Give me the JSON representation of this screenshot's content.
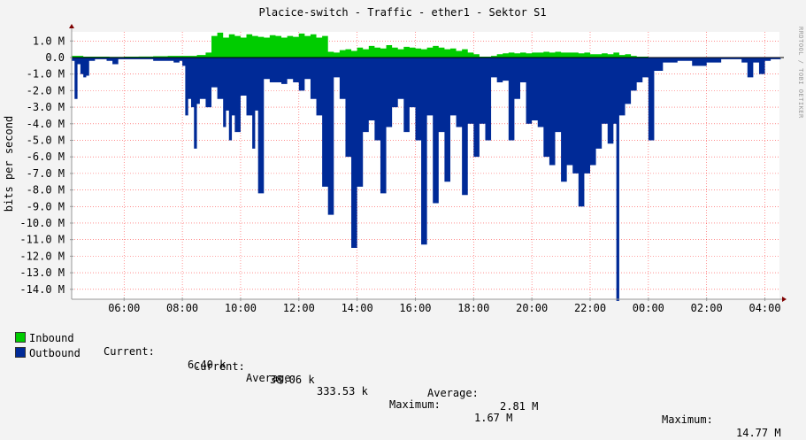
{
  "chart_data": {
    "type": "area",
    "title": "Placice-switch - Traffic - ether1 - Sektor S1",
    "ylabel": "bits per second",
    "watermark": "RRDTOOL / TOBI OETIKER",
    "ylim": [
      -14.6,
      1.55
    ],
    "yticks": [
      1.0,
      0.0,
      -1.0,
      -2.0,
      -3.0,
      -4.0,
      -5.0,
      -6.0,
      -7.0,
      -8.0,
      -9.0,
      -10.0,
      -11.0,
      -12.0,
      -13.0,
      -14.0
    ],
    "ytick_labels": [
      "1.0 M",
      "0.0",
      "-1.0 M",
      "-2.0 M",
      "-3.0 M",
      "-4.0 M",
      "-5.0 M",
      "-6.0 M",
      "-7.0 M",
      "-8.0 M",
      "-9.0 M",
      "-10.0 M",
      "-11.0 M",
      "-12.0 M",
      "-13.0 M",
      "-14.0 M"
    ],
    "xlim": [
      4.2,
      28.5
    ],
    "xticks": [
      6,
      8,
      10,
      12,
      14,
      16,
      18,
      20,
      22,
      24,
      26,
      28
    ],
    "xtick_labels": [
      "06:00",
      "08:00",
      "10:00",
      "12:00",
      "14:00",
      "16:00",
      "18:00",
      "20:00",
      "22:00",
      "00:00",
      "02:00",
      "04:00"
    ],
    "grid": true,
    "colors": {
      "inbound": "#00cc00",
      "outbound": "#002a97",
      "grid": "#ff0000",
      "axis": "#999999"
    },
    "series": [
      {
        "name": "Inbound",
        "x": [
          4.2,
          4.4,
          4.6,
          5.0,
          5.5,
          6.0,
          6.5,
          7.0,
          7.5,
          8.0,
          8.5,
          8.8,
          9.0,
          9.2,
          9.4,
          9.6,
          9.8,
          10.0,
          10.2,
          10.4,
          10.6,
          10.8,
          11.0,
          11.2,
          11.4,
          11.6,
          11.8,
          12.0,
          12.2,
          12.4,
          12.6,
          12.8,
          13.0,
          13.2,
          13.4,
          13.6,
          13.8,
          14.0,
          14.2,
          14.4,
          14.6,
          14.8,
          15.0,
          15.2,
          15.4,
          15.6,
          15.8,
          16.0,
          16.2,
          16.4,
          16.6,
          16.8,
          17.0,
          17.2,
          17.4,
          17.6,
          17.8,
          18.0,
          18.2,
          18.4,
          18.6,
          18.8,
          19.0,
          19.2,
          19.4,
          19.6,
          19.8,
          20.0,
          20.2,
          20.4,
          20.6,
          20.8,
          21.0,
          21.2,
          21.4,
          21.6,
          21.8,
          22.0,
          22.2,
          22.4,
          22.6,
          22.8,
          23.0,
          23.2,
          23.4,
          23.6,
          24.0,
          25.0,
          26.0,
          27.0,
          28.0,
          28.5
        ],
        "values": [
          0.1,
          0.1,
          0.05,
          0.05,
          0.04,
          0.05,
          0.06,
          0.08,
          0.1,
          0.1,
          0.15,
          0.3,
          1.3,
          1.5,
          1.2,
          1.4,
          1.3,
          1.2,
          1.4,
          1.3,
          1.25,
          1.2,
          1.35,
          1.3,
          1.2,
          1.3,
          1.25,
          1.45,
          1.3,
          1.4,
          1.2,
          1.3,
          0.35,
          0.3,
          0.45,
          0.5,
          0.4,
          0.6,
          0.5,
          0.7,
          0.6,
          0.55,
          0.75,
          0.6,
          0.5,
          0.65,
          0.6,
          0.55,
          0.5,
          0.6,
          0.7,
          0.6,
          0.5,
          0.55,
          0.4,
          0.5,
          0.3,
          0.2,
          0.05,
          0.05,
          0.1,
          0.2,
          0.25,
          0.3,
          0.25,
          0.3,
          0.25,
          0.3,
          0.3,
          0.35,
          0.3,
          0.35,
          0.3,
          0.3,
          0.3,
          0.25,
          0.3,
          0.2,
          0.2,
          0.25,
          0.2,
          0.3,
          0.15,
          0.2,
          0.1,
          0.05,
          0.02,
          0.02,
          0.02,
          0.02,
          0.02,
          0.02
        ]
      },
      {
        "name": "Outbound",
        "x": [
          4.2,
          4.3,
          4.4,
          4.5,
          4.6,
          4.7,
          4.8,
          5.0,
          5.4,
          5.6,
          5.8,
          6.0,
          6.5,
          7.0,
          7.5,
          7.7,
          7.9,
          8.0,
          8.1,
          8.2,
          8.3,
          8.4,
          8.5,
          8.6,
          8.8,
          9.0,
          9.2,
          9.4,
          9.5,
          9.6,
          9.7,
          9.8,
          10.0,
          10.2,
          10.4,
          10.5,
          10.6,
          10.8,
          11.0,
          11.2,
          11.4,
          11.6,
          11.8,
          12.0,
          12.2,
          12.4,
          12.6,
          12.8,
          13.0,
          13.2,
          13.4,
          13.6,
          13.8,
          14.0,
          14.2,
          14.4,
          14.6,
          14.8,
          15.0,
          15.2,
          15.4,
          15.6,
          15.8,
          16.0,
          16.2,
          16.4,
          16.6,
          16.8,
          17.0,
          17.2,
          17.4,
          17.6,
          17.8,
          18.0,
          18.2,
          18.4,
          18.6,
          18.8,
          19.0,
          19.2,
          19.4,
          19.6,
          19.8,
          20.0,
          20.2,
          20.4,
          20.6,
          20.8,
          21.0,
          21.2,
          21.4,
          21.6,
          21.8,
          22.0,
          22.2,
          22.4,
          22.6,
          22.8,
          22.9,
          23.0,
          23.2,
          23.4,
          23.6,
          23.8,
          24.0,
          24.2,
          24.5,
          25.0,
          25.5,
          26.0,
          26.5,
          27.0,
          27.2,
          27.4,
          27.6,
          27.8,
          28.0,
          28.2,
          28.5
        ],
        "values": [
          -0.2,
          -2.5,
          -0.4,
          -1.0,
          -1.2,
          -1.1,
          -0.2,
          -0.1,
          -0.2,
          -0.4,
          -0.1,
          -0.1,
          -0.1,
          -0.2,
          -0.2,
          -0.3,
          -0.2,
          -0.5,
          -3.5,
          -2.5,
          -3.0,
          -5.5,
          -2.8,
          -2.5,
          -3.0,
          -1.8,
          -2.5,
          -4.2,
          -3.2,
          -5.0,
          -3.5,
          -4.5,
          -2.3,
          -3.5,
          -5.5,
          -3.2,
          -8.2,
          -1.3,
          -1.5,
          -1.5,
          -1.6,
          -1.3,
          -1.5,
          -2.0,
          -1.3,
          -2.5,
          -3.5,
          -7.8,
          -9.5,
          -1.2,
          -2.5,
          -6.0,
          -11.5,
          -7.8,
          -4.5,
          -3.8,
          -5.0,
          -8.2,
          -4.2,
          -3.0,
          -2.5,
          -4.5,
          -3.0,
          -5.0,
          -11.3,
          -3.5,
          -8.8,
          -4.5,
          -7.5,
          -3.5,
          -4.2,
          -8.3,
          -4.0,
          -6.0,
          -4.0,
          -5.0,
          -1.2,
          -1.5,
          -1.4,
          -5.0,
          -2.5,
          -1.5,
          -4.0,
          -3.8,
          -4.2,
          -6.0,
          -6.5,
          -4.5,
          -7.5,
          -6.5,
          -7.0,
          -9.0,
          -7.0,
          -6.5,
          -5.5,
          -4.0,
          -5.2,
          -4.0,
          -14.7,
          -3.5,
          -2.8,
          -2.0,
          -1.5,
          -1.2,
          -5.0,
          -0.8,
          -0.3,
          -0.2,
          -0.5,
          -0.3,
          -0.1,
          -0.1,
          -0.3,
          -1.2,
          -0.3,
          -1.0,
          -0.2,
          -0.1,
          -0.1
        ]
      }
    ]
  },
  "legend": {
    "inbound": {
      "label": "Inbound",
      "current_label": "Current:",
      "current": "6.40 k",
      "average_label": "Average:",
      "average": "333.53 k",
      "maximum_label": "Maximum:",
      "maximum": "1.67 M"
    },
    "outbound": {
      "label": "Outbound",
      "current_label": "Current:",
      "current": "38.06 k",
      "average_label": "Average:",
      "average": "2.81 M",
      "maximum_label": "Maximum:",
      "maximum": "14.77 M"
    }
  }
}
